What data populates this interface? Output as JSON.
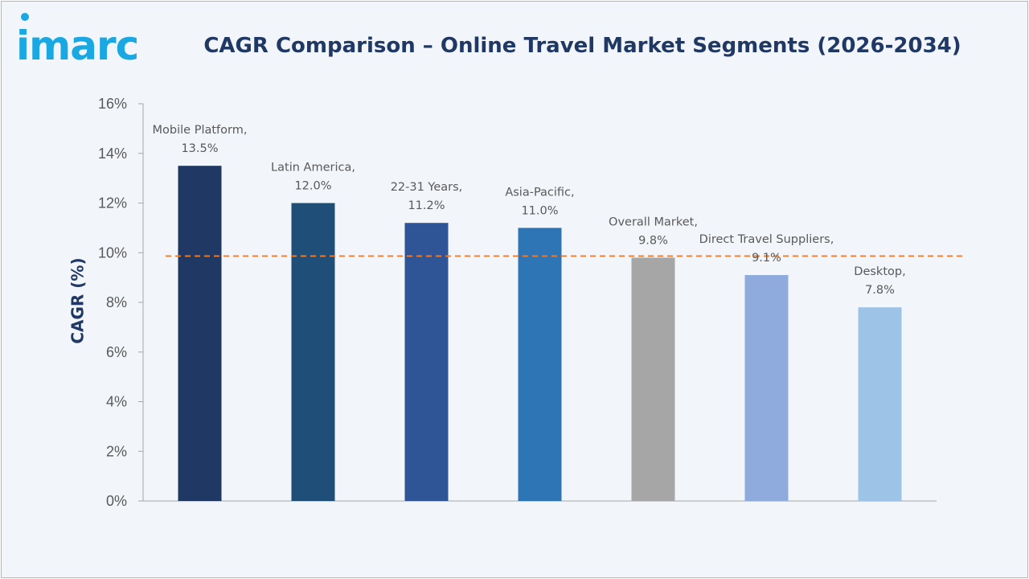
{
  "brand": {
    "logo_text": "imarc",
    "logo_color": "#1aa8e3"
  },
  "chart_data": {
    "type": "bar",
    "title": "CAGR Comparison – Online Travel Market Segments (2026-2034)",
    "ylabel": "CAGR (%)",
    "xlabel": "",
    "ylim": [
      0,
      16
    ],
    "yticks": [
      0,
      2,
      4,
      6,
      8,
      10,
      12,
      14,
      16
    ],
    "ytick_suffix": "%",
    "grid": false,
    "legend": "none",
    "categories": [
      "Mobile Platform",
      "Latin America",
      "22-31 Years",
      "Asia-Pacific",
      "Overall Market",
      "Direct Travel Suppliers",
      "Desktop"
    ],
    "values": [
      13.5,
      12.0,
      11.2,
      11.0,
      9.8,
      9.1,
      7.8
    ],
    "labels": [
      [
        "Mobile Platform,",
        "13.5%"
      ],
      [
        "Latin America,",
        "12.0%"
      ],
      [
        "22-31 Years,",
        "11.2%"
      ],
      [
        "Asia-Pacific,",
        "11.0%"
      ],
      [
        "Overall Market,",
        "9.8%"
      ],
      [
        "Direct Travel Suppliers,",
        "9.1%"
      ],
      [
        "Desktop,",
        "7.8%"
      ]
    ],
    "colors": [
      "#1f3864",
      "#1f4e79",
      "#2f5597",
      "#2e75b6",
      "#a6a6a6",
      "#8faadc",
      "#9dc3e6"
    ],
    "reference_line": {
      "value": 9.8,
      "style": "dashed",
      "color": "#ed7d31"
    }
  }
}
